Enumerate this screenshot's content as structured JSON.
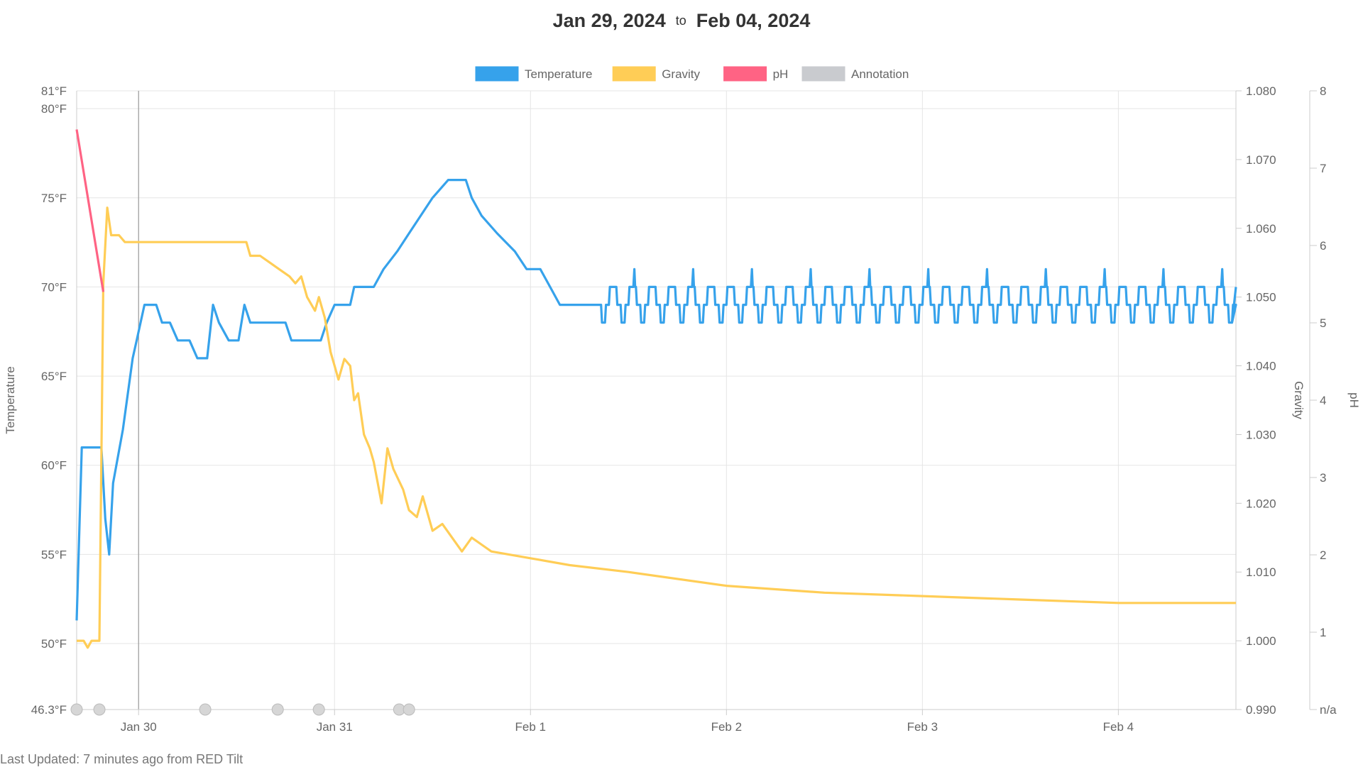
{
  "header": {
    "start_date": "Jan 29, 2024",
    "separator": "to",
    "end_date": "Feb 04, 2024"
  },
  "footer": {
    "text": "Last Updated: 7 minutes ago from RED Tilt"
  },
  "chart_data": {
    "type": "line",
    "legend": {
      "position": "top",
      "items": [
        {
          "label": "Temperature",
          "color": "#36a2eb"
        },
        {
          "label": "Gravity",
          "color": "#ffcd56"
        },
        {
          "label": "pH",
          "color": "#ff6384"
        },
        {
          "label": "Annotation",
          "color": "#c9cbcf"
        }
      ]
    },
    "grid": true,
    "x_axis": {
      "unit": "days",
      "ticks": [
        {
          "label": "Jan 30",
          "value": 1.0
        },
        {
          "label": "Jan 31",
          "value": 2.0
        },
        {
          "label": "Feb 1",
          "value": 3.0
        },
        {
          "label": "Feb 2",
          "value": 4.0
        },
        {
          "label": "Feb 3",
          "value": 5.0
        },
        {
          "label": "Feb 4",
          "value": 6.0
        }
      ],
      "range": [
        0.684,
        6.6
      ]
    },
    "y_axes": {
      "temperature": {
        "label": "Temperature",
        "min": 46.3,
        "max": 81,
        "ticks": [
          {
            "label": "46.3°F",
            "value": 46.3
          },
          {
            "label": "50°F",
            "value": 50
          },
          {
            "label": "55°F",
            "value": 55
          },
          {
            "label": "60°F",
            "value": 60
          },
          {
            "label": "65°F",
            "value": 65
          },
          {
            "label": "70°F",
            "value": 70
          },
          {
            "label": "75°F",
            "value": 75
          },
          {
            "label": "80°F",
            "value": 80
          },
          {
            "label": "81°F",
            "value": 81
          }
        ]
      },
      "gravity": {
        "label": "Gravity",
        "min": 0.99,
        "max": 1.08,
        "ticks": [
          {
            "label": "0.990",
            "value": 0.99
          },
          {
            "label": "1.000",
            "value": 1.0
          },
          {
            "label": "1.010",
            "value": 1.01
          },
          {
            "label": "1.020",
            "value": 1.02
          },
          {
            "label": "1.030",
            "value": 1.03
          },
          {
            "label": "1.040",
            "value": 1.04
          },
          {
            "label": "1.050",
            "value": 1.05
          },
          {
            "label": "1.060",
            "value": 1.06
          },
          {
            "label": "1.070",
            "value": 1.07
          },
          {
            "label": "1.080",
            "value": 1.08
          }
        ]
      },
      "ph": {
        "label": "pH",
        "min": 0,
        "max": 8,
        "ticks": [
          {
            "label": "n/a",
            "value": 0
          },
          {
            "label": "1",
            "value": 1
          },
          {
            "label": "2",
            "value": 2
          },
          {
            "label": "3",
            "value": 3
          },
          {
            "label": "4",
            "value": 4
          },
          {
            "label": "5",
            "value": 5
          },
          {
            "label": "6",
            "value": 6
          },
          {
            "label": "7",
            "value": 7
          },
          {
            "label": "8",
            "value": 8
          }
        ]
      }
    },
    "vertical_marker": 1.0,
    "series": [
      {
        "name": "Temperature",
        "axis": "temperature",
        "color": "#36a2eb",
        "points": [
          [
            0.684,
            51.3
          ],
          [
            0.71,
            61
          ],
          [
            0.78,
            61
          ],
          [
            0.81,
            61
          ],
          [
            0.83,
            57
          ],
          [
            0.85,
            55
          ],
          [
            0.87,
            59
          ],
          [
            0.92,
            62
          ],
          [
            0.97,
            66
          ],
          [
            0.99,
            67
          ],
          [
            1.03,
            69
          ],
          [
            1.09,
            69
          ],
          [
            1.12,
            68
          ],
          [
            1.16,
            68
          ],
          [
            1.2,
            67
          ],
          [
            1.26,
            67
          ],
          [
            1.3,
            66
          ],
          [
            1.35,
            66
          ],
          [
            1.38,
            69
          ],
          [
            1.41,
            68
          ],
          [
            1.46,
            67
          ],
          [
            1.51,
            67
          ],
          [
            1.54,
            69
          ],
          [
            1.57,
            68
          ],
          [
            1.75,
            68
          ],
          [
            1.78,
            67
          ],
          [
            1.93,
            67
          ],
          [
            1.96,
            68
          ],
          [
            2.0,
            69
          ],
          [
            2.08,
            69
          ],
          [
            2.1,
            70
          ],
          [
            2.2,
            70
          ],
          [
            2.25,
            71
          ],
          [
            2.32,
            72
          ],
          [
            2.38,
            73
          ],
          [
            2.44,
            74
          ],
          [
            2.5,
            75
          ],
          [
            2.58,
            76
          ],
          [
            2.67,
            76
          ],
          [
            2.7,
            75
          ],
          [
            2.75,
            74
          ],
          [
            2.83,
            73
          ],
          [
            2.92,
            72
          ],
          [
            2.98,
            71
          ],
          [
            3.05,
            71
          ],
          [
            3.1,
            70
          ],
          [
            3.15,
            69
          ],
          [
            3.22,
            69
          ],
          [
            3.27,
            69
          ],
          [
            3.3,
            69
          ],
          [
            3.33,
            69
          ],
          [
            3.36,
            69
          ]
        ],
        "oscillation": {
          "start": 3.36,
          "end": 6.6,
          "period": 0.1,
          "low": 68,
          "base": 69,
          "high": 70,
          "spike": 71
        }
      },
      {
        "name": "Gravity",
        "axis": "gravity",
        "color": "#ffcd56",
        "points": [
          [
            0.684,
            1.0
          ],
          [
            0.72,
            1.0
          ],
          [
            0.74,
            0.999
          ],
          [
            0.76,
            1.0
          ],
          [
            0.8,
            1.0
          ],
          [
            0.82,
            1.052
          ],
          [
            0.84,
            1.063
          ],
          [
            0.86,
            1.059
          ],
          [
            0.9,
            1.059
          ],
          [
            0.93,
            1.058
          ],
          [
            1.0,
            1.058
          ],
          [
            1.2,
            1.058
          ],
          [
            1.4,
            1.058
          ],
          [
            1.55,
            1.058
          ],
          [
            1.57,
            1.056
          ],
          [
            1.62,
            1.056
          ],
          [
            1.67,
            1.055
          ],
          [
            1.72,
            1.054
          ],
          [
            1.77,
            1.053
          ],
          [
            1.8,
            1.052
          ],
          [
            1.83,
            1.053
          ],
          [
            1.86,
            1.05
          ],
          [
            1.9,
            1.048
          ],
          [
            1.92,
            1.05
          ],
          [
            1.95,
            1.047
          ],
          [
            1.98,
            1.042
          ],
          [
            2.0,
            1.04
          ],
          [
            2.02,
            1.038
          ],
          [
            2.05,
            1.041
          ],
          [
            2.08,
            1.04
          ],
          [
            2.1,
            1.035
          ],
          [
            2.12,
            1.036
          ],
          [
            2.15,
            1.03
          ],
          [
            2.18,
            1.028
          ],
          [
            2.2,
            1.026
          ],
          [
            2.24,
            1.02
          ],
          [
            2.27,
            1.028
          ],
          [
            2.3,
            1.025
          ],
          [
            2.35,
            1.022
          ],
          [
            2.38,
            1.019
          ],
          [
            2.42,
            1.018
          ],
          [
            2.45,
            1.021
          ],
          [
            2.5,
            1.016
          ],
          [
            2.55,
            1.017
          ],
          [
            2.6,
            1.015
          ],
          [
            2.65,
            1.013
          ],
          [
            2.7,
            1.015
          ],
          [
            2.75,
            1.014
          ],
          [
            2.8,
            1.013
          ],
          [
            3.0,
            1.012
          ],
          [
            3.2,
            1.011
          ],
          [
            3.5,
            1.01
          ],
          [
            4.0,
            1.008
          ],
          [
            4.5,
            1.007
          ],
          [
            5.0,
            1.0065
          ],
          [
            5.5,
            1.006
          ],
          [
            6.0,
            1.0055
          ],
          [
            6.6,
            1.0055
          ]
        ]
      },
      {
        "name": "pH",
        "axis": "ph",
        "color": "#ff6384",
        "points": [
          [
            0.684,
            7.5
          ],
          [
            0.82,
            5.4
          ]
        ]
      }
    ],
    "annotations": [
      0.684,
      0.8,
      1.34,
      1.71,
      1.92,
      2.33,
      2.38
    ]
  }
}
